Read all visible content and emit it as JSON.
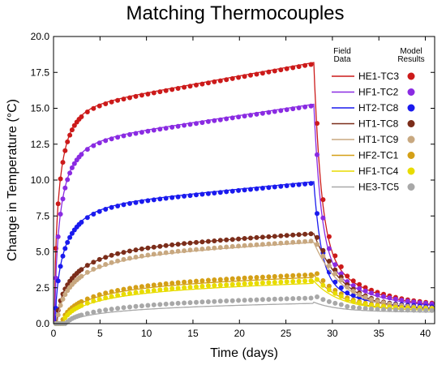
{
  "chart_data": {
    "type": "line",
    "title": "Matching Thermocouples",
    "xlabel": "Time (days)",
    "ylabel": "Change in Temperature (°C)",
    "xlim": [
      0,
      41
    ],
    "ylim": [
      0,
      20
    ],
    "x_ticks": [
      "0",
      "5",
      "10",
      "15",
      "20",
      "25",
      "30",
      "35",
      "40"
    ],
    "y_ticks": [
      "0.0",
      "2.5",
      "5.0",
      "7.5",
      "10.0",
      "12.5",
      "15.0",
      "17.5",
      "20.0"
    ],
    "grid": false,
    "legend": {
      "placement": "top-right",
      "header_field": "Field\nData",
      "header_model": "Model\nResults"
    },
    "heating_end_day": 28,
    "series": [
      {
        "name": "HE1-TC3",
        "color": "#cc1a1a",
        "peak_field": 18.1,
        "peak_model": 18.2,
        "end_value": 1.0
      },
      {
        "name": "HF1-TC2",
        "color": "#8a2be2",
        "peak_field": 15.2,
        "peak_model": 15.3,
        "end_value": 1.0
      },
      {
        "name": "HT2-TC8",
        "color": "#1a1aee",
        "peak_field": 9.8,
        "peak_model": 9.9,
        "end_value": 0.9
      },
      {
        "name": "HT1-TC8",
        "color": "#7b2d1a",
        "peak_field": 6.3,
        "peak_model": 6.3,
        "end_value": 0.9
      },
      {
        "name": "HT1-TC9",
        "color": "#c8a880",
        "peak_field": 5.8,
        "peak_model": 5.7,
        "end_value": 0.9
      },
      {
        "name": "HF2-TC1",
        "color": "#d4a017",
        "peak_field": 3.5,
        "peak_model": 3.3,
        "end_value": 0.9
      },
      {
        "name": "HF1-TC4",
        "color": "#e8dc00",
        "peak_field": 3.1,
        "peak_model": 2.9,
        "end_value": 0.9
      },
      {
        "name": "HE3-TC5",
        "color": "#a8a8a8",
        "peak_field": 1.9,
        "peak_model": 1.5,
        "end_value": 0.8
      }
    ]
  }
}
